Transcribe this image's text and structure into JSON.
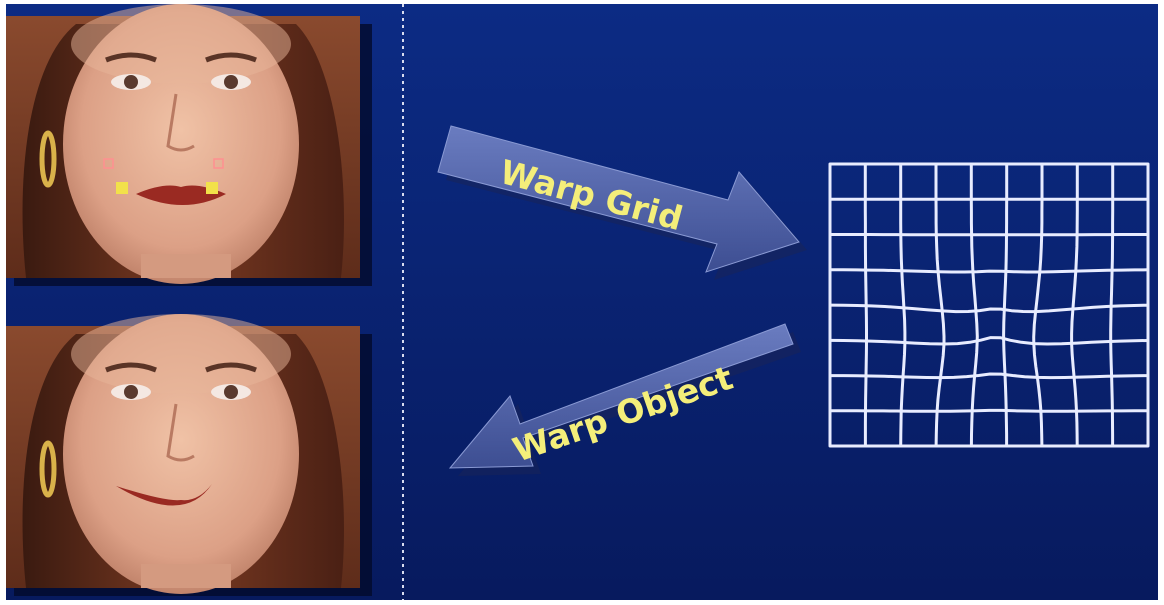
{
  "diagram": {
    "warp_grid_label": "Warp Grid",
    "warp_object_label": "Warp Object",
    "colors": {
      "background_top": "#0c2b84",
      "background_bottom": "#071a5e",
      "arrow_face": "#4d5fa6",
      "arrow_shadow": "#1a2558",
      "label_text": "#f4ee7a",
      "grid_lines": "#e8ecff",
      "control_point": "#f2e14a"
    },
    "grid": {
      "columns": 9,
      "rows": 8
    },
    "panels": [
      {
        "name": "original-face-photo",
        "description_icon": "face-photo-icon"
      },
      {
        "name": "warped-face-photo",
        "description_icon": "face-photo-icon"
      }
    ]
  }
}
